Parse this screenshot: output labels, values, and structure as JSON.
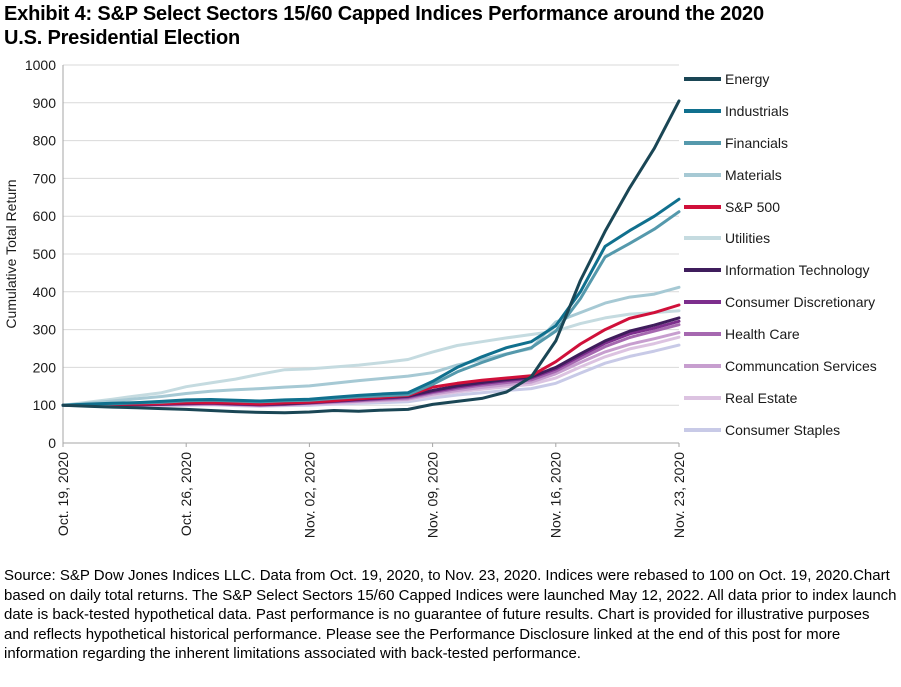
{
  "title_lines": [
    "Exhibit 4: S&P Select Sectors 15/60 Capped Indices Performance around the 2020",
    "U.S. Presidential Election"
  ],
  "source_text": "Source: S&P Dow Jones Indices LLC. Data from Oct. 19, 2020, to Nov. 23, 2020. Indices were rebased to 100 on Oct. 19, 2020.Chart based on daily total returns. The S&P Select Sectors 15/60 Capped Indices were launched May 12, 2022. All data prior to index launch date is back-tested hypothetical data. Past performance is no guarantee of future results. Chart is provided for illustrative purposes and reflects hypothetical historical performance. Please see the Performance Disclosure linked at the end of this post for more information regarding the inherent limitations associated with back-tested performance.",
  "colors": {
    "grid": "#D9D9D9",
    "axis": "#A6A6A6",
    "tick_text": "#1A1A1A"
  },
  "chart_data": {
    "type": "line",
    "title": "Exhibit 4: S&P Select Sectors 15/60 Capped Indices Performance around the 2020 U.S. Presidential Election",
    "xlabel": "",
    "ylabel": "Cumulative Total Return",
    "ylim": [
      0,
      1000
    ],
    "ytick_step": 100,
    "grid": "horizontal",
    "legend_position": "right",
    "n_points": 26,
    "x_tick_indices": [
      0,
      5,
      10,
      15,
      20,
      25
    ],
    "x_tick_labels": [
      "Oct. 19, 2020",
      "Oct. 26, 2020",
      "Nov. 02, 2020",
      "Nov. 09, 2020",
      "Nov. 16, 2020",
      "Nov. 23, 2020"
    ],
    "series": [
      {
        "name": "Energy",
        "color": "#1A4655",
        "values": [
          100,
          97,
          95,
          93,
          91,
          89,
          86,
          83,
          81,
          80,
          82,
          86,
          84,
          87,
          89,
          102,
          110,
          118,
          135,
          175,
          270,
          430,
          560,
          675,
          780,
          905
        ]
      },
      {
        "name": "Industrials",
        "color": "#10708E",
        "values": [
          100,
          103,
          105,
          107,
          110,
          114,
          115,
          113,
          111,
          114,
          116,
          121,
          126,
          130,
          133,
          163,
          200,
          228,
          252,
          268,
          310,
          400,
          520,
          562,
          600,
          645
        ]
      },
      {
        "name": "Financials",
        "color": "#5599AC",
        "values": [
          100,
          102,
          104,
          106,
          108,
          112,
          113,
          111,
          109,
          112,
          113,
          118,
          122,
          125,
          128,
          155,
          188,
          213,
          235,
          252,
          296,
          382,
          492,
          528,
          566,
          612
        ]
      },
      {
        "name": "Materials",
        "color": "#A6C9D4",
        "values": [
          100,
          105,
          111,
          117,
          123,
          131,
          137,
          141,
          144,
          148,
          151,
          158,
          165,
          171,
          177,
          186,
          206,
          221,
          236,
          250,
          320,
          345,
          370,
          386,
          394,
          412
        ]
      },
      {
        "name": "S&P 500",
        "color": "#D0103A",
        "values": [
          100,
          101,
          102,
          103,
          104,
          106,
          107,
          105,
          103,
          106,
          108,
          112,
          117,
          121,
          126,
          148,
          158,
          166,
          172,
          178,
          215,
          262,
          300,
          330,
          345,
          365
        ]
      },
      {
        "name": "Utilities",
        "color": "#C5DBE0",
        "values": [
          100,
          108,
          116,
          125,
          133,
          149,
          159,
          169,
          182,
          194,
          196,
          201,
          206,
          213,
          221,
          241,
          258,
          268,
          278,
          287,
          296,
          316,
          331,
          341,
          345,
          350
        ]
      },
      {
        "name": "Information Technology",
        "color": "#3F1D5C",
        "values": [
          100,
          100,
          101,
          102,
          103,
          105,
          106,
          104,
          102,
          104,
          107,
          111,
          116,
          120,
          124,
          139,
          151,
          160,
          168,
          175,
          200,
          236,
          270,
          296,
          312,
          331
        ]
      },
      {
        "name": "Consumer Discretionary",
        "color": "#7D2E8D",
        "values": [
          100,
          100,
          101,
          101,
          102,
          104,
          105,
          103,
          101,
          103,
          106,
          110,
          114,
          118,
          122,
          136,
          148,
          157,
          165,
          172,
          196,
          231,
          264,
          289,
          304,
          322
        ]
      },
      {
        "name": "Health Care",
        "color": "#A668B0",
        "values": [
          100,
          99,
          100,
          101,
          102,
          103,
          104,
          102,
          100,
          102,
          105,
          109,
          112,
          116,
          119,
          133,
          144,
          153,
          160,
          167,
          190,
          223,
          255,
          279,
          296,
          313
        ]
      },
      {
        "name": "Communcation Services",
        "color": "#C79ECF",
        "values": [
          100,
          99,
          99,
          100,
          101,
          102,
          103,
          101,
          99,
          101,
          104,
          107,
          110,
          113,
          116,
          129,
          139,
          147,
          154,
          161,
          183,
          213,
          241,
          261,
          276,
          292
        ]
      },
      {
        "name": "Real Estate",
        "color": "#DCC3E1",
        "values": [
          100,
          99,
          98,
          99,
          100,
          101,
          102,
          100,
          98,
          100,
          102,
          105,
          108,
          111,
          114,
          126,
          135,
          142,
          149,
          155,
          172,
          201,
          228,
          249,
          263,
          280
        ]
      },
      {
        "name": "Consumer Staples",
        "color": "#C8CAE7",
        "values": [
          100,
          98,
          97,
          97,
          98,
          100,
          101,
          99,
          97,
          99,
          100,
          103,
          105,
          107,
          109,
          119,
          127,
          133,
          139,
          144,
          158,
          185,
          211,
          229,
          243,
          259
        ]
      }
    ]
  }
}
